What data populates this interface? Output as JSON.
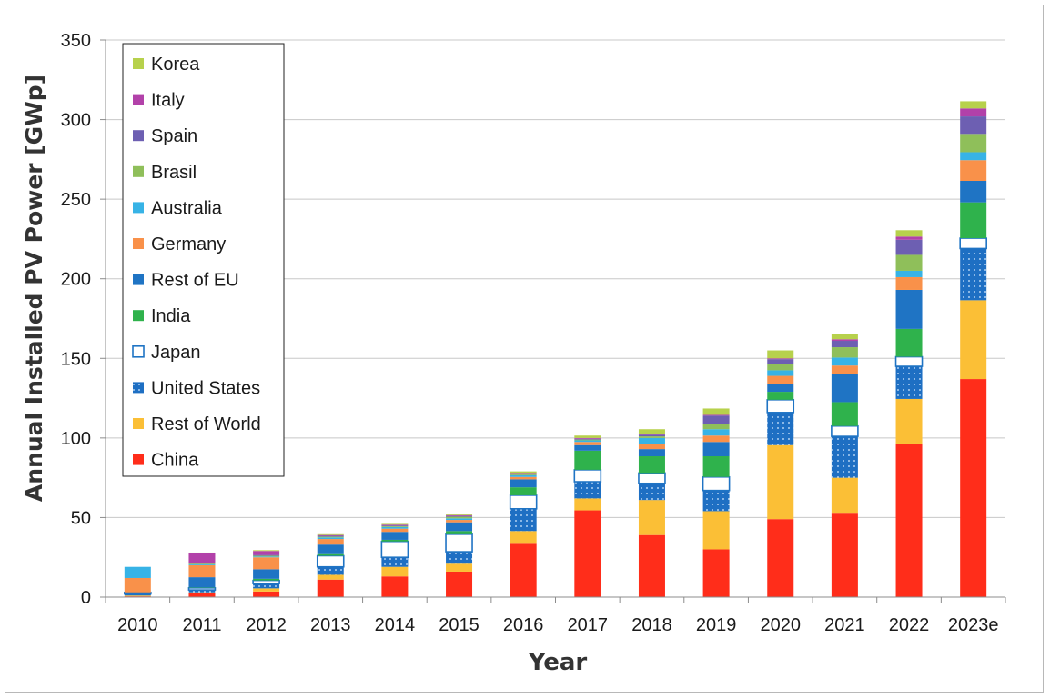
{
  "chart_data": {
    "type": "bar",
    "stacked": true,
    "xlabel": "Year",
    "ylabel": "Annual Installed PV Power [GWp]",
    "ylim": [
      0,
      350
    ],
    "yticks": [
      0,
      50,
      100,
      150,
      200,
      250,
      300,
      350
    ],
    "grid": true,
    "legend_position": "top-left",
    "categories": [
      "2010",
      "2011",
      "2012",
      "2013",
      "2014",
      "2015",
      "2016",
      "2017",
      "2018",
      "2019",
      "2020",
      "2021",
      "2022",
      "2023e"
    ],
    "series": [
      {
        "name": "China",
        "color": "#ff2d1a",
        "pattern": "solid",
        "values": [
          0.5,
          2.5,
          3.5,
          11,
          13,
          16,
          33.5,
          54.5,
          39,
          30,
          49,
          53,
          96.5,
          137
        ]
      },
      {
        "name": "Rest of World",
        "color": "#fbbf36",
        "pattern": "solid",
        "values": [
          0.5,
          0.5,
          2,
          3,
          6,
          5,
          8,
          7.5,
          22,
          24,
          46.5,
          22,
          28,
          49.5
        ]
      },
      {
        "name": "United States",
        "color": "#1e6fc3",
        "pattern": "dotted",
        "values": [
          1,
          1.5,
          3,
          5,
          6,
          7.5,
          14,
          10.5,
          10.5,
          13,
          20.5,
          26,
          20.5,
          32.5
        ]
      },
      {
        "name": "Japan",
        "color": "#ffffff",
        "pattern": "outline",
        "values": [
          1,
          1.3,
          2,
          7,
          10,
          11,
          8.5,
          7.5,
          6.5,
          8.5,
          8,
          6.5,
          6,
          6.5
        ]
      },
      {
        "name": "India",
        "color": "#2fb24c",
        "pattern": "solid",
        "values": [
          0,
          0.3,
          1,
          1,
          1,
          2,
          5,
          12,
          10.5,
          13,
          5,
          15,
          17.5,
          22.5
        ]
      },
      {
        "name": "Rest of EU",
        "color": "#1f74c4",
        "pattern": "solid",
        "values": [
          0,
          6.4,
          6,
          6,
          5,
          5.5,
          5,
          3.5,
          4.5,
          9,
          5,
          17.5,
          24.5,
          13.5
        ]
      },
      {
        "name": "Germany",
        "color": "#f9914a",
        "pattern": "solid",
        "values": [
          9,
          7.5,
          7.5,
          3.5,
          2,
          1.5,
          1.5,
          2,
          3,
          4,
          5,
          5.5,
          8,
          13
        ]
      },
      {
        "name": "Australia",
        "color": "#37b3e6",
        "pattern": "solid",
        "values": [
          7,
          0.5,
          0.5,
          1,
          1,
          1,
          1,
          1,
          4,
          4,
          3.5,
          5,
          4,
          5
        ]
      },
      {
        "name": "Brasil",
        "color": "#8fbf5a",
        "pattern": "solid",
        "values": [
          0,
          0.5,
          0.5,
          0.5,
          0.5,
          1,
          0.5,
          0.5,
          1,
          3.5,
          4,
          6.5,
          10,
          11.5
        ]
      },
      {
        "name": "Spain",
        "color": "#6d5fb2",
        "pattern": "solid",
        "values": [
          0,
          0.5,
          0.5,
          0.5,
          0.5,
          0.5,
          0.5,
          0.5,
          1,
          5,
          3,
          4,
          9.5,
          11
        ]
      },
      {
        "name": "Italy",
        "color": "#b241a9",
        "pattern": "solid",
        "values": [
          0,
          6,
          2.5,
          0.5,
          0.5,
          0.5,
          0.5,
          0.5,
          0.5,
          0.5,
          0.5,
          1,
          2,
          5
        ]
      },
      {
        "name": "Korea",
        "color": "#b7d14c",
        "pattern": "solid",
        "values": [
          0,
          0.5,
          0.5,
          0.5,
          0.5,
          1,
          1,
          1.5,
          3,
          4,
          5,
          3.5,
          4,
          4.5
        ]
      }
    ]
  }
}
